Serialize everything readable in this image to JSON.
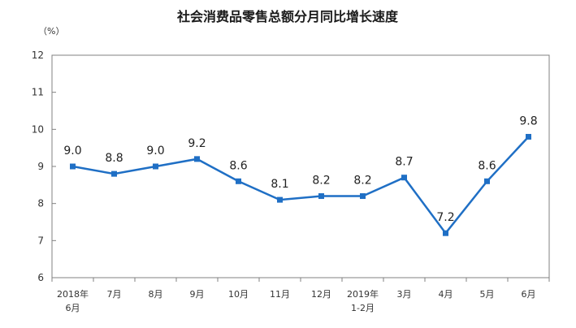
{
  "chart_data": {
    "type": "line",
    "title": "社会消费品零售总额分月同比增长速度",
    "unit_label": "（%）",
    "xlabel": "",
    "ylabel": "",
    "ylim": [
      6,
      12
    ],
    "yticks": [
      "6",
      "7",
      "8",
      "9",
      "10",
      "11",
      "12"
    ],
    "grid": false,
    "categories": [
      [
        "2018年",
        "6月"
      ],
      [
        "7月"
      ],
      [
        "8月"
      ],
      [
        "9月"
      ],
      [
        "10月"
      ],
      [
        "11月"
      ],
      [
        "12月"
      ],
      [
        "2019年",
        "1-2月"
      ],
      [
        "3月"
      ],
      [
        "4月"
      ],
      [
        "5月"
      ],
      [
        "6月"
      ]
    ],
    "values": [
      9.0,
      8.8,
      9.0,
      9.2,
      8.6,
      8.1,
      8.2,
      8.2,
      8.7,
      7.2,
      8.6,
      9.8
    ],
    "data_labels": [
      "9.0",
      "8.8",
      "9.0",
      "9.2",
      "8.6",
      "8.1",
      "8.2",
      "8.2",
      "8.7",
      "7.2",
      "8.6",
      "9.8"
    ],
    "line_color": "#1f6fc5",
    "axis_color": "#808080"
  }
}
